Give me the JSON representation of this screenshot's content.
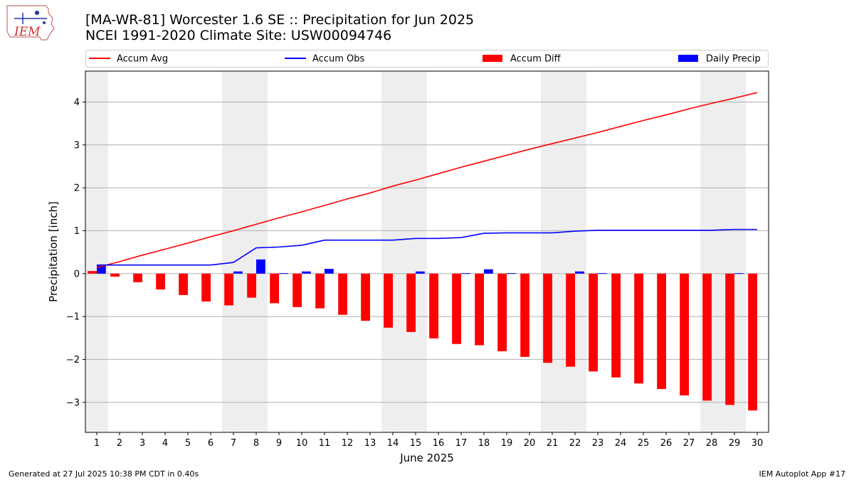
{
  "title_line1": "[MA-WR-81] Worcester 1.6 SE :: Precipitation for Jun 2025",
  "title_line2": "NCEI 1991-2020 Climate Site: USW00094746",
  "logo_text": "IEM",
  "footer_left": "Generated at 27 Jul 2025 10:38 PM CDT in 0.40s",
  "footer_right": "IEM Autoplot App #17",
  "colors": {
    "accum_avg": "#ff0000",
    "accum_obs": "#0000ff",
    "accum_diff": "#ff0000",
    "daily_precip": "#0000ff",
    "weekend_shade": "#eeeeee",
    "grid": "#b0b0b0"
  },
  "chart_data": {
    "type": "bar",
    "xlabel": "June 2025",
    "ylabel": "Precipitation [inch]",
    "xlim": [
      0.5,
      30.5
    ],
    "ylim": [
      -3.7,
      4.72
    ],
    "yticks": [
      -3,
      -2,
      -1,
      0,
      1,
      2,
      3,
      4
    ],
    "ytick_labels": [
      "−3",
      "−2",
      "−1",
      "0",
      "1",
      "2",
      "3",
      "4"
    ],
    "days": [
      1,
      2,
      3,
      4,
      5,
      6,
      7,
      8,
      9,
      10,
      11,
      12,
      13,
      14,
      15,
      16,
      17,
      18,
      19,
      20,
      21,
      22,
      23,
      24,
      25,
      26,
      27,
      28,
      29,
      30
    ],
    "grid": "y",
    "legend_position": "top",
    "weekend_ranges": [
      [
        0.5,
        1.5
      ],
      [
        6.5,
        8.5
      ],
      [
        13.5,
        15.5
      ],
      [
        20.5,
        22.5
      ],
      [
        27.5,
        29.5
      ]
    ],
    "legend": [
      {
        "label": "Accum Avg",
        "kind": "line",
        "color": "#ff0000"
      },
      {
        "label": "Accum Obs",
        "kind": "line",
        "color": "#0000ff"
      },
      {
        "label": "Accum Diff",
        "kind": "bar",
        "color": "#ff0000"
      },
      {
        "label": "Daily Precip",
        "kind": "bar",
        "color": "#0000ff"
      }
    ],
    "series": [
      {
        "name": "Accum Avg",
        "kind": "line",
        "values": [
          0.14,
          0.28,
          0.43,
          0.57,
          0.71,
          0.86,
          1.0,
          1.15,
          1.3,
          1.44,
          1.59,
          1.74,
          1.88,
          2.04,
          2.18,
          2.33,
          2.48,
          2.62,
          2.76,
          2.9,
          3.03,
          3.16,
          3.29,
          3.43,
          3.57,
          3.7,
          3.84,
          3.97,
          4.09,
          4.22
        ]
      },
      {
        "name": "Accum Obs",
        "kind": "line",
        "values": [
          0.2,
          0.2,
          0.2,
          0.2,
          0.2,
          0.2,
          0.26,
          0.6,
          0.62,
          0.66,
          0.78,
          0.78,
          0.78,
          0.78,
          0.82,
          0.82,
          0.84,
          0.94,
          0.95,
          0.95,
          0.95,
          0.99,
          1.01,
          1.01,
          1.01,
          1.01,
          1.01,
          1.01,
          1.03,
          1.03
        ]
      },
      {
        "name": "Accum Diff",
        "kind": "bar",
        "values": [
          0.06,
          -0.07,
          -0.2,
          -0.37,
          -0.5,
          -0.65,
          -0.74,
          -0.56,
          -0.69,
          -0.78,
          -0.81,
          -0.96,
          -1.1,
          -1.26,
          -1.36,
          -1.51,
          -1.64,
          -1.67,
          -1.81,
          -1.94,
          -2.08,
          -2.17,
          -2.28,
          -2.42,
          -2.56,
          -2.69,
          -2.84,
          -2.96,
          -3.06,
          -3.19
        ]
      },
      {
        "name": "Daily Precip",
        "kind": "bar",
        "values": [
          0.2,
          0.0,
          0.0,
          0.0,
          0.0,
          0.0,
          0.05,
          0.33,
          0.01,
          0.05,
          0.11,
          0.0,
          0.0,
          0.0,
          0.05,
          0.0,
          0.01,
          0.1,
          0.01,
          0.0,
          0.0,
          0.05,
          0.01,
          0.0,
          0.0,
          0.0,
          0.0,
          0.0,
          0.01,
          0.0
        ]
      }
    ]
  }
}
